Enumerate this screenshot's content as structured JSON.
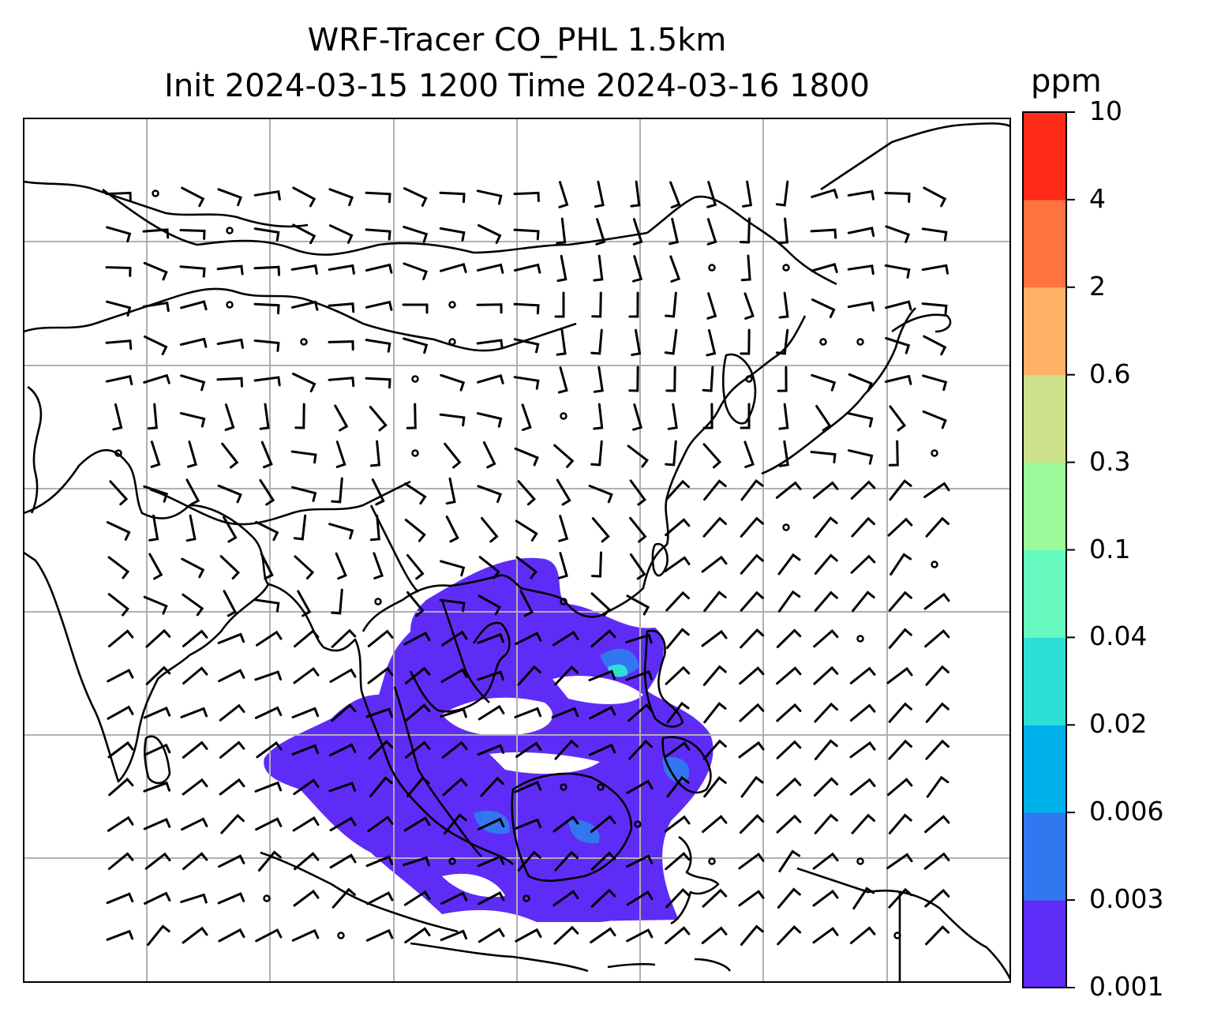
{
  "title": {
    "line1": "WRF-Tracer CO_PHL 1.5km",
    "line2": "Init 2024-03-15 1200 Time 2024-03-16 1800"
  },
  "colorbar": {
    "unit": "ppm",
    "levels": [
      "0.001",
      "0.003",
      "0.006",
      "0.02",
      "0.04",
      "0.1",
      "0.3",
      "0.6",
      "2",
      "4",
      "10"
    ],
    "colors": [
      "#5f2cf7",
      "#3276f0",
      "#00b0eb",
      "#2ddfd5",
      "#66f9c0",
      "#9bfa9a",
      "#cde18a",
      "#fdb265",
      "#ff7340",
      "#ff2a17"
    ]
  },
  "map": {
    "gridlines": true,
    "coastline_color": "#000000",
    "grid_color": "#b0b0b0"
  }
}
